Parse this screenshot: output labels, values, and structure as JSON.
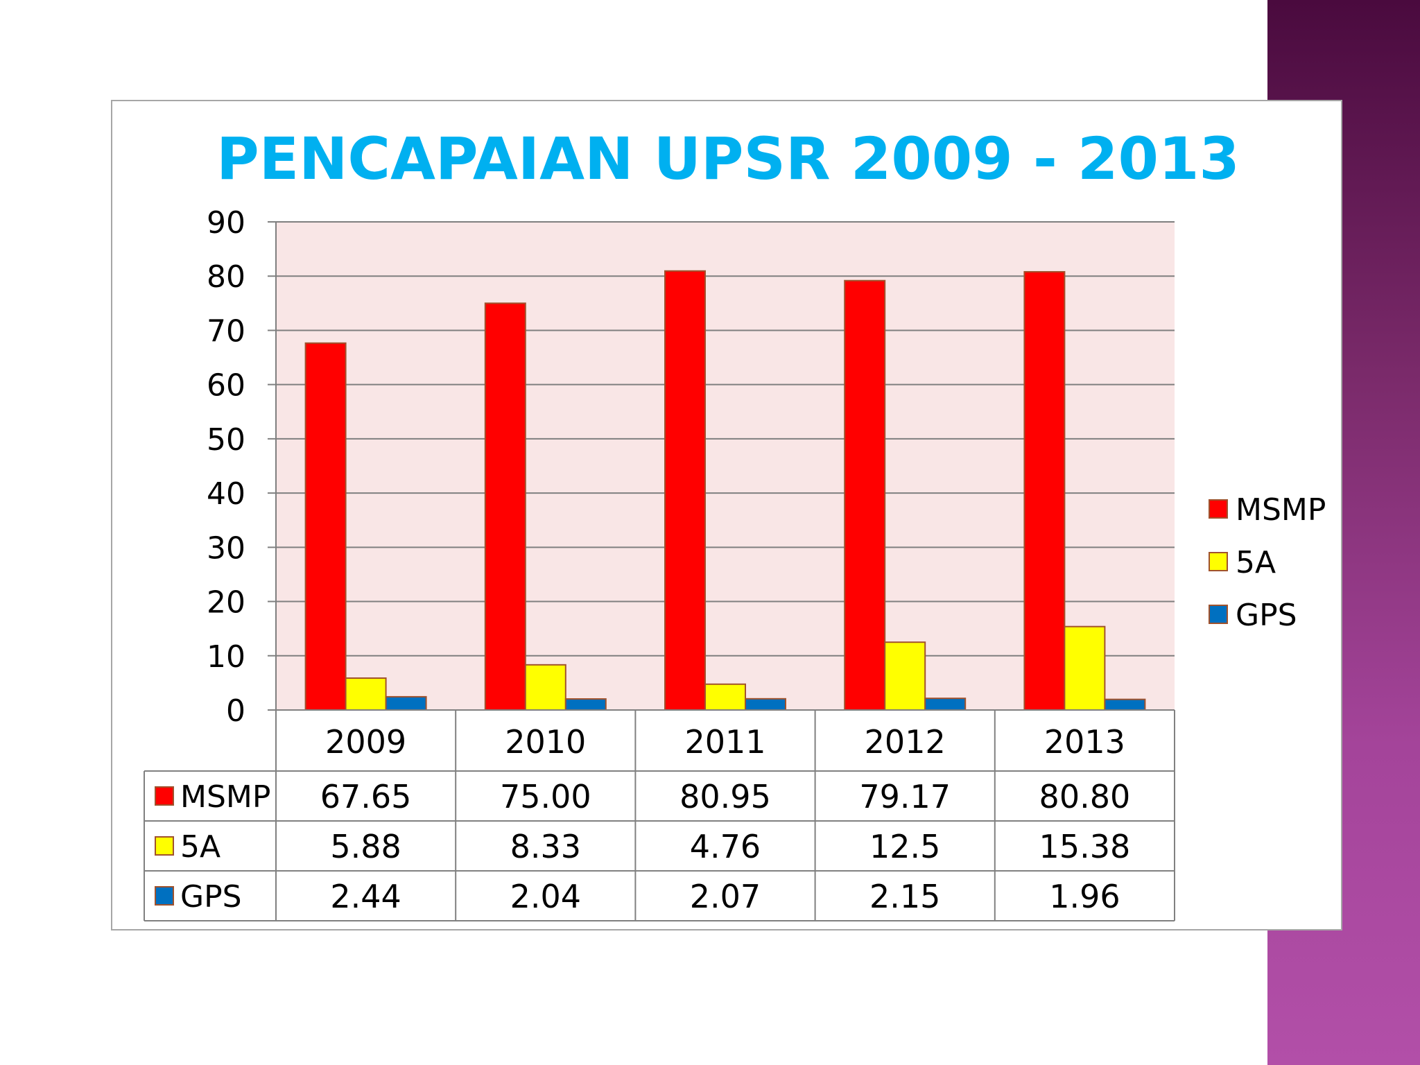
{
  "chart_data": {
    "type": "bar",
    "title": "PENCAPAIAN UPSR 2009 - 2013",
    "categories": [
      "2009",
      "2010",
      "2011",
      "2012",
      "2013"
    ],
    "series": [
      {
        "name": "MSMP",
        "values": [
          67.65,
          75.0,
          80.95,
          79.17,
          80.8
        ],
        "labels": [
          "67.65",
          "75.00",
          "80.95",
          "79.17",
          "80.80"
        ],
        "color": "#ff0000"
      },
      {
        "name": "5A",
        "values": [
          5.88,
          8.33,
          4.76,
          12.5,
          15.38
        ],
        "labels": [
          "5.88",
          "8.33",
          "4.76",
          "12.5",
          "15.38"
        ],
        "color": "#ffff00"
      },
      {
        "name": "GPS",
        "values": [
          2.44,
          2.04,
          2.07,
          2.15,
          1.96
        ],
        "labels": [
          "2.44",
          "2.04",
          "2.07",
          "2.15",
          "1.96"
        ],
        "color": "#0070c0"
      }
    ],
    "ylim": [
      0,
      90
    ],
    "yticks": [
      "0",
      "10",
      "20",
      "30",
      "40",
      "50",
      "60",
      "70",
      "80",
      "90"
    ],
    "grid": true,
    "legend": "right",
    "data_table": true,
    "colors": {
      "title": "#00b0f0",
      "plot_background": "#f9e6e6",
      "gridline": "#7f7f7f",
      "bar_border": "#a0522d"
    }
  }
}
